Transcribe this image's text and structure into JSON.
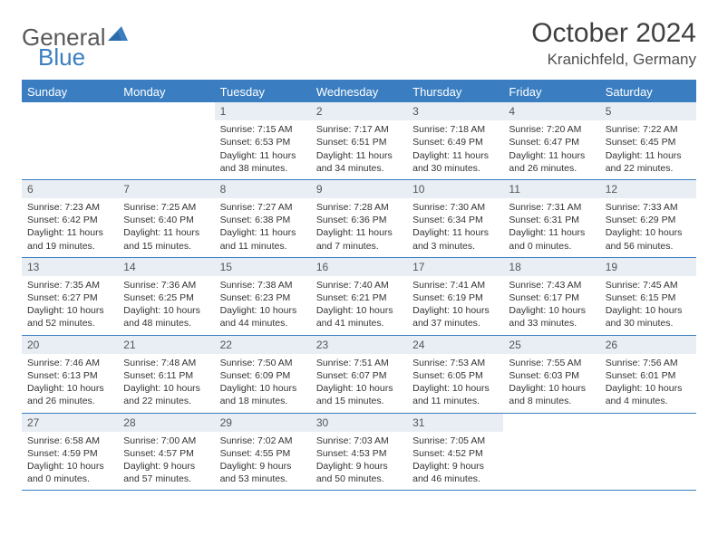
{
  "logo": {
    "text1": "General",
    "text2": "Blue"
  },
  "title": "October 2024",
  "location": "Kranichfeld, Germany",
  "colors": {
    "brand_blue": "#3a7ec1",
    "daynum_bg": "#e8eef4",
    "text": "#333333",
    "background": "#ffffff"
  },
  "weekdays": [
    "Sunday",
    "Monday",
    "Tuesday",
    "Wednesday",
    "Thursday",
    "Friday",
    "Saturday"
  ],
  "weeks": [
    [
      {
        "n": "",
        "sr": "",
        "ss": "",
        "dl": ""
      },
      {
        "n": "",
        "sr": "",
        "ss": "",
        "dl": ""
      },
      {
        "n": "1",
        "sr": "Sunrise: 7:15 AM",
        "ss": "Sunset: 6:53 PM",
        "dl": "Daylight: 11 hours and 38 minutes."
      },
      {
        "n": "2",
        "sr": "Sunrise: 7:17 AM",
        "ss": "Sunset: 6:51 PM",
        "dl": "Daylight: 11 hours and 34 minutes."
      },
      {
        "n": "3",
        "sr": "Sunrise: 7:18 AM",
        "ss": "Sunset: 6:49 PM",
        "dl": "Daylight: 11 hours and 30 minutes."
      },
      {
        "n": "4",
        "sr": "Sunrise: 7:20 AM",
        "ss": "Sunset: 6:47 PM",
        "dl": "Daylight: 11 hours and 26 minutes."
      },
      {
        "n": "5",
        "sr": "Sunrise: 7:22 AM",
        "ss": "Sunset: 6:45 PM",
        "dl": "Daylight: 11 hours and 22 minutes."
      }
    ],
    [
      {
        "n": "6",
        "sr": "Sunrise: 7:23 AM",
        "ss": "Sunset: 6:42 PM",
        "dl": "Daylight: 11 hours and 19 minutes."
      },
      {
        "n": "7",
        "sr": "Sunrise: 7:25 AM",
        "ss": "Sunset: 6:40 PM",
        "dl": "Daylight: 11 hours and 15 minutes."
      },
      {
        "n": "8",
        "sr": "Sunrise: 7:27 AM",
        "ss": "Sunset: 6:38 PM",
        "dl": "Daylight: 11 hours and 11 minutes."
      },
      {
        "n": "9",
        "sr": "Sunrise: 7:28 AM",
        "ss": "Sunset: 6:36 PM",
        "dl": "Daylight: 11 hours and 7 minutes."
      },
      {
        "n": "10",
        "sr": "Sunrise: 7:30 AM",
        "ss": "Sunset: 6:34 PM",
        "dl": "Daylight: 11 hours and 3 minutes."
      },
      {
        "n": "11",
        "sr": "Sunrise: 7:31 AM",
        "ss": "Sunset: 6:31 PM",
        "dl": "Daylight: 11 hours and 0 minutes."
      },
      {
        "n": "12",
        "sr": "Sunrise: 7:33 AM",
        "ss": "Sunset: 6:29 PM",
        "dl": "Daylight: 10 hours and 56 minutes."
      }
    ],
    [
      {
        "n": "13",
        "sr": "Sunrise: 7:35 AM",
        "ss": "Sunset: 6:27 PM",
        "dl": "Daylight: 10 hours and 52 minutes."
      },
      {
        "n": "14",
        "sr": "Sunrise: 7:36 AM",
        "ss": "Sunset: 6:25 PM",
        "dl": "Daylight: 10 hours and 48 minutes."
      },
      {
        "n": "15",
        "sr": "Sunrise: 7:38 AM",
        "ss": "Sunset: 6:23 PM",
        "dl": "Daylight: 10 hours and 44 minutes."
      },
      {
        "n": "16",
        "sr": "Sunrise: 7:40 AM",
        "ss": "Sunset: 6:21 PM",
        "dl": "Daylight: 10 hours and 41 minutes."
      },
      {
        "n": "17",
        "sr": "Sunrise: 7:41 AM",
        "ss": "Sunset: 6:19 PM",
        "dl": "Daylight: 10 hours and 37 minutes."
      },
      {
        "n": "18",
        "sr": "Sunrise: 7:43 AM",
        "ss": "Sunset: 6:17 PM",
        "dl": "Daylight: 10 hours and 33 minutes."
      },
      {
        "n": "19",
        "sr": "Sunrise: 7:45 AM",
        "ss": "Sunset: 6:15 PM",
        "dl": "Daylight: 10 hours and 30 minutes."
      }
    ],
    [
      {
        "n": "20",
        "sr": "Sunrise: 7:46 AM",
        "ss": "Sunset: 6:13 PM",
        "dl": "Daylight: 10 hours and 26 minutes."
      },
      {
        "n": "21",
        "sr": "Sunrise: 7:48 AM",
        "ss": "Sunset: 6:11 PM",
        "dl": "Daylight: 10 hours and 22 minutes."
      },
      {
        "n": "22",
        "sr": "Sunrise: 7:50 AM",
        "ss": "Sunset: 6:09 PM",
        "dl": "Daylight: 10 hours and 18 minutes."
      },
      {
        "n": "23",
        "sr": "Sunrise: 7:51 AM",
        "ss": "Sunset: 6:07 PM",
        "dl": "Daylight: 10 hours and 15 minutes."
      },
      {
        "n": "24",
        "sr": "Sunrise: 7:53 AM",
        "ss": "Sunset: 6:05 PM",
        "dl": "Daylight: 10 hours and 11 minutes."
      },
      {
        "n": "25",
        "sr": "Sunrise: 7:55 AM",
        "ss": "Sunset: 6:03 PM",
        "dl": "Daylight: 10 hours and 8 minutes."
      },
      {
        "n": "26",
        "sr": "Sunrise: 7:56 AM",
        "ss": "Sunset: 6:01 PM",
        "dl": "Daylight: 10 hours and 4 minutes."
      }
    ],
    [
      {
        "n": "27",
        "sr": "Sunrise: 6:58 AM",
        "ss": "Sunset: 4:59 PM",
        "dl": "Daylight: 10 hours and 0 minutes."
      },
      {
        "n": "28",
        "sr": "Sunrise: 7:00 AM",
        "ss": "Sunset: 4:57 PM",
        "dl": "Daylight: 9 hours and 57 minutes."
      },
      {
        "n": "29",
        "sr": "Sunrise: 7:02 AM",
        "ss": "Sunset: 4:55 PM",
        "dl": "Daylight: 9 hours and 53 minutes."
      },
      {
        "n": "30",
        "sr": "Sunrise: 7:03 AM",
        "ss": "Sunset: 4:53 PM",
        "dl": "Daylight: 9 hours and 50 minutes."
      },
      {
        "n": "31",
        "sr": "Sunrise: 7:05 AM",
        "ss": "Sunset: 4:52 PM",
        "dl": "Daylight: 9 hours and 46 minutes."
      },
      {
        "n": "",
        "sr": "",
        "ss": "",
        "dl": ""
      },
      {
        "n": "",
        "sr": "",
        "ss": "",
        "dl": ""
      }
    ]
  ]
}
